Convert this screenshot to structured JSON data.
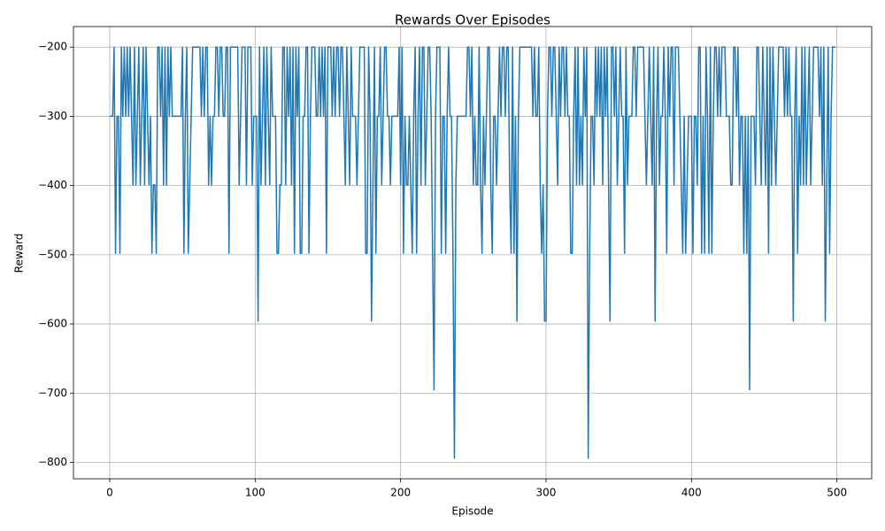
{
  "chart_data": {
    "type": "line",
    "title": "Rewards Over Episodes",
    "xlabel": "Episode",
    "ylabel": "Reward",
    "color": "#1f77b4",
    "grid": true,
    "xlim": [
      -24.95,
      523.95
    ],
    "xticks": [
      0,
      100,
      200,
      300,
      400,
      500
    ],
    "ylim": [
      -823.7,
      -170.3
    ],
    "yticks": [
      {
        "value": -800,
        "label": "−800"
      },
      {
        "value": -700,
        "label": "−700"
      },
      {
        "value": -600,
        "label": "−600"
      },
      {
        "value": -500,
        "label": "−500"
      },
      {
        "value": -400,
        "label": "−400"
      },
      {
        "value": -300,
        "label": "−300"
      },
      {
        "value": -200,
        "label": "−200"
      }
    ],
    "x": [
      0,
      1,
      2,
      3,
      4,
      5,
      6,
      7,
      8,
      9,
      10,
      11,
      12,
      13,
      14,
      15,
      16,
      17,
      18,
      19,
      20,
      21,
      22,
      23,
      24,
      25,
      26,
      27,
      28,
      29,
      30,
      31,
      32,
      33,
      34,
      35,
      36,
      37,
      38,
      39,
      40,
      41,
      42,
      43,
      44,
      45,
      46,
      47,
      48,
      49,
      50,
      51,
      52,
      53,
      54,
      55,
      56,
      57,
      58,
      59,
      60,
      61,
      62,
      63,
      64,
      65,
      66,
      67,
      68,
      69,
      70,
      71,
      72,
      73,
      74,
      75,
      76,
      77,
      78,
      79,
      80,
      81,
      82,
      83,
      84,
      85,
      86,
      87,
      88,
      89,
      90,
      91,
      92,
      93,
      94,
      95,
      96,
      97,
      98,
      99,
      100,
      101,
      102,
      103,
      104,
      105,
      106,
      107,
      108,
      109,
      110,
      111,
      112,
      113,
      114,
      115,
      116,
      117,
      118,
      119,
      120,
      121,
      122,
      123,
      124,
      125,
      126,
      127,
      128,
      129,
      130,
      131,
      132,
      133,
      134,
      135,
      136,
      137,
      138,
      139,
      140,
      141,
      142,
      143,
      144,
      145,
      146,
      147,
      148,
      149,
      150,
      151,
      152,
      153,
      154,
      155,
      156,
      157,
      158,
      159,
      160,
      161,
      162,
      163,
      164,
      165,
      166,
      167,
      168,
      169,
      170,
      171,
      172,
      173,
      174,
      175,
      176,
      177,
      178,
      179,
      180,
      181,
      182,
      183,
      184,
      185,
      186,
      187,
      188,
      189,
      190,
      191,
      192,
      193,
      194,
      195,
      196,
      197,
      198,
      199,
      200,
      201,
      202,
      203,
      204,
      205,
      206,
      207,
      208,
      209,
      210,
      211,
      212,
      213,
      214,
      215,
      216,
      217,
      218,
      219,
      220,
      221,
      222,
      223,
      224,
      225,
      226,
      227,
      228,
      229,
      230,
      231,
      232,
      233,
      234,
      235,
      236,
      237,
      238,
      239,
      240,
      241,
      242,
      243,
      244,
      245,
      246,
      247,
      248,
      249,
      250,
      251,
      252,
      253,
      254,
      255,
      256,
      257,
      258,
      259,
      260,
      261,
      262,
      263,
      264,
      265,
      266,
      267,
      268,
      269,
      270,
      271,
      272,
      273,
      274,
      275,
      276,
      277,
      278,
      279,
      280,
      281,
      282,
      283,
      284,
      285,
      286,
      287,
      288,
      289,
      290,
      291,
      292,
      293,
      294,
      295,
      296,
      297,
      298,
      299,
      300,
      301,
      302,
      303,
      304,
      305,
      306,
      307,
      308,
      309,
      310,
      311,
      312,
      313,
      314,
      315,
      316,
      317,
      318,
      319,
      320,
      321,
      322,
      323,
      324,
      325,
      326,
      327,
      328,
      329,
      330,
      331,
      332,
      333,
      334,
      335,
      336,
      337,
      338,
      339,
      340,
      341,
      342,
      343,
      344,
      345,
      346,
      347,
      348,
      349,
      350,
      351,
      352,
      353,
      354,
      355,
      356,
      357,
      358,
      359,
      360,
      361,
      362,
      363,
      364,
      365,
      366,
      367,
      368,
      369,
      370,
      371,
      372,
      373,
      374,
      375,
      376,
      377,
      378,
      379,
      380,
      381,
      382,
      383,
      384,
      385,
      386,
      387,
      388,
      389,
      390,
      391,
      392,
      393,
      394,
      395,
      396,
      397,
      398,
      399,
      400,
      401,
      402,
      403,
      404,
      405,
      406,
      407,
      408,
      409,
      410,
      411,
      412,
      413,
      414,
      415,
      416,
      417,
      418,
      419,
      420,
      421,
      422,
      423,
      424,
      425,
      426,
      427,
      428,
      429,
      430,
      431,
      432,
      433,
      434,
      435,
      436,
      437,
      438,
      439,
      440,
      441,
      442,
      443,
      444,
      445,
      446,
      447,
      448,
      449,
      450,
      451,
      452,
      453,
      454,
      455,
      456,
      457,
      458,
      459,
      460,
      461,
      462,
      463,
      464,
      465,
      466,
      467,
      468,
      469,
      470,
      471,
      472,
      473,
      474,
      475,
      476,
      477,
      478,
      479,
      480,
      481,
      482,
      483,
      484,
      485,
      486,
      487,
      488,
      489,
      490,
      491,
      492,
      493,
      494,
      495,
      496,
      497,
      498,
      499
    ],
    "values": [
      -300,
      -300,
      -300,
      -200,
      -498,
      -300,
      -300,
      -498,
      -200,
      -300,
      -200,
      -300,
      -200,
      -300,
      -200,
      -300,
      -399,
      -200,
      -399,
      -300,
      -200,
      -399,
      -300,
      -200,
      -399,
      -200,
      -300,
      -399,
      -300,
      -498,
      -399,
      -399,
      -498,
      -200,
      -200,
      -300,
      -200,
      -399,
      -200,
      -399,
      -200,
      -300,
      -200,
      -300,
      -300,
      -300,
      -300,
      -300,
      -300,
      -300,
      -200,
      -498,
      -300,
      -200,
      -498,
      -399,
      -300,
      -200,
      -200,
      -200,
      -200,
      -200,
      -200,
      -300,
      -200,
      -300,
      -200,
      -200,
      -399,
      -300,
      -399,
      -300,
      -300,
      -200,
      -200,
      -300,
      -200,
      -200,
      -300,
      -300,
      -200,
      -200,
      -498,
      -200,
      -200,
      -200,
      -200,
      -200,
      -200,
      -399,
      -300,
      -200,
      -200,
      -200,
      -399,
      -200,
      -200,
      -200,
      -399,
      -300,
      -300,
      -300,
      -596,
      -200,
      -399,
      -300,
      -200,
      -399,
      -200,
      -300,
      -399,
      -200,
      -300,
      -300,
      -300,
      -498,
      -498,
      -399,
      -399,
      -200,
      -200,
      -399,
      -200,
      -300,
      -200,
      -399,
      -200,
      -498,
      -200,
      -300,
      -200,
      -498,
      -498,
      -300,
      -300,
      -200,
      -200,
      -498,
      -300,
      -200,
      -200,
      -200,
      -300,
      -300,
      -200,
      -300,
      -200,
      -300,
      -200,
      -498,
      -200,
      -200,
      -200,
      -300,
      -200,
      -300,
      -200,
      -200,
      -300,
      -200,
      -200,
      -300,
      -399,
      -200,
      -300,
      -399,
      -200,
      -300,
      -300,
      -300,
      -399,
      -300,
      -200,
      -200,
      -200,
      -200,
      -498,
      -498,
      -200,
      -300,
      -596,
      -399,
      -200,
      -498,
      -300,
      -300,
      -200,
      -399,
      -300,
      -200,
      -200,
      -300,
      -300,
      -399,
      -300,
      -300,
      -300,
      -300,
      -300,
      -200,
      -399,
      -200,
      -498,
      -300,
      -399,
      -399,
      -300,
      -399,
      -498,
      -300,
      -200,
      -498,
      -300,
      -200,
      -399,
      -200,
      -200,
      -399,
      -300,
      -200,
      -200,
      -300,
      -498,
      -695,
      -300,
      -200,
      -200,
      -200,
      -498,
      -300,
      -300,
      -498,
      -300,
      -200,
      -300,
      -300,
      -498,
      -794,
      -399,
      -300,
      -300,
      -300,
      -300,
      -300,
      -300,
      -300,
      -200,
      -200,
      -300,
      -200,
      -399,
      -300,
      -399,
      -399,
      -200,
      -399,
      -498,
      -300,
      -399,
      -300,
      -200,
      -200,
      -399,
      -498,
      -300,
      -300,
      -399,
      -300,
      -200,
      -300,
      -200,
      -200,
      -300,
      -200,
      -200,
      -399,
      -498,
      -200,
      -498,
      -300,
      -596,
      -300,
      -200,
      -200,
      -200,
      -200,
      -200,
      -200,
      -200,
      -200,
      -200,
      -300,
      -200,
      -300,
      -300,
      -200,
      -399,
      -498,
      -399,
      -596,
      -596,
      -300,
      -200,
      -200,
      -300,
      -200,
      -200,
      -300,
      -399,
      -200,
      -300,
      -200,
      -200,
      -300,
      -200,
      -300,
      -300,
      -498,
      -498,
      -300,
      -200,
      -399,
      -200,
      -399,
      -300,
      -399,
      -200,
      -300,
      -200,
      -794,
      -498,
      -300,
      -300,
      -399,
      -200,
      -300,
      -200,
      -300,
      -200,
      -399,
      -200,
      -300,
      -200,
      -399,
      -596,
      -200,
      -200,
      -300,
      -200,
      -399,
      -300,
      -200,
      -300,
      -300,
      -498,
      -200,
      -399,
      -300,
      -300,
      -300,
      -200,
      -200,
      -300,
      -200,
      -200,
      -200,
      -200,
      -200,
      -300,
      -399,
      -300,
      -200,
      -300,
      -399,
      -200,
      -596,
      -300,
      -200,
      -399,
      -300,
      -300,
      -200,
      -300,
      -498,
      -200,
      -300,
      -200,
      -200,
      -399,
      -200,
      -200,
      -200,
      -300,
      -399,
      -498,
      -300,
      -498,
      -399,
      -300,
      -300,
      -300,
      -498,
      -300,
      -300,
      -399,
      -200,
      -200,
      -498,
      -300,
      -498,
      -200,
      -300,
      -498,
      -200,
      -498,
      -300,
      -200,
      -200,
      -300,
      -200,
      -300,
      -200,
      -200,
      -200,
      -300,
      -300,
      -300,
      -399,
      -399,
      -200,
      -200,
      -300,
      -200,
      -399,
      -300,
      -300,
      -498,
      -300,
      -498,
      -300,
      -695,
      -300,
      -300,
      -300,
      -399,
      -200,
      -200,
      -300,
      -399,
      -200,
      -300,
      -399,
      -200,
      -498,
      -200,
      -399,
      -200,
      -300,
      -399,
      -300,
      -200,
      -200,
      -200,
      -200,
      -300,
      -200,
      -300,
      -200,
      -300,
      -300,
      -596,
      -300,
      -200,
      -498,
      -300,
      -399,
      -200,
      -399,
      -200,
      -399,
      -300,
      -200,
      -399,
      -300,
      -200,
      -200,
      -200,
      -200,
      -300,
      -200,
      -399,
      -200,
      -596,
      -399,
      -200,
      -498,
      -300,
      -200,
      -200,
      -200
    ]
  }
}
